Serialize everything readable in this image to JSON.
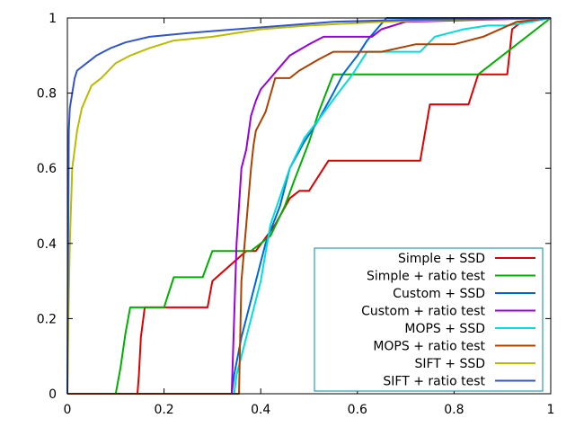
{
  "chart_data": {
    "type": "line",
    "title": "",
    "xlabel": "",
    "ylabel": "",
    "xlim": [
      0,
      1
    ],
    "ylim": [
      0,
      1
    ],
    "grid": false,
    "legend_position": "bottom-right",
    "x_ticks": [
      "0",
      "0.2",
      "0.4",
      "0.6",
      "0.8",
      "1"
    ],
    "y_ticks": [
      "0",
      "0.2",
      "0.4",
      "0.6",
      "0.8",
      "1"
    ],
    "series": [
      {
        "name": "Simple + SSD",
        "color": "#e00000",
        "points": [
          [
            0,
            0
          ],
          [
            0.145,
            0
          ],
          [
            0.148,
            0.05
          ],
          [
            0.152,
            0.15
          ],
          [
            0.16,
            0.23
          ],
          [
            0.21,
            0.23
          ],
          [
            0.29,
            0.23
          ],
          [
            0.3,
            0.3
          ],
          [
            0.37,
            0.38
          ],
          [
            0.39,
            0.38
          ],
          [
            0.43,
            0.45
          ],
          [
            0.46,
            0.52
          ],
          [
            0.48,
            0.54
          ],
          [
            0.5,
            0.54
          ],
          [
            0.54,
            0.62
          ],
          [
            0.6,
            0.62
          ],
          [
            0.73,
            0.62
          ],
          [
            0.75,
            0.77
          ],
          [
            0.83,
            0.77
          ],
          [
            0.85,
            0.85
          ],
          [
            0.91,
            0.85
          ],
          [
            0.92,
            0.97
          ],
          [
            0.94,
            0.99
          ],
          [
            1,
            1
          ]
        ]
      },
      {
        "name": "Simple + ratio test",
        "color": "#00b000",
        "points": [
          [
            0,
            0
          ],
          [
            0.1,
            0
          ],
          [
            0.11,
            0.07
          ],
          [
            0.12,
            0.16
          ],
          [
            0.13,
            0.23
          ],
          [
            0.2,
            0.23
          ],
          [
            0.22,
            0.31
          ],
          [
            0.28,
            0.31
          ],
          [
            0.3,
            0.38
          ],
          [
            0.38,
            0.38
          ],
          [
            0.42,
            0.42
          ],
          [
            0.45,
            0.5
          ],
          [
            0.47,
            0.57
          ],
          [
            0.5,
            0.67
          ],
          [
            0.52,
            0.75
          ],
          [
            0.55,
            0.85
          ],
          [
            0.6,
            0.85
          ],
          [
            0.85,
            0.85
          ],
          [
            1,
            1
          ]
        ]
      },
      {
        "name": "Custom + SSD",
        "color": "#0066dd",
        "points": [
          [
            0,
            0
          ],
          [
            0.34,
            0
          ],
          [
            0.345,
            0.05
          ],
          [
            0.36,
            0.15
          ],
          [
            0.39,
            0.3
          ],
          [
            0.41,
            0.4
          ],
          [
            0.44,
            0.5
          ],
          [
            0.46,
            0.6
          ],
          [
            0.49,
            0.67
          ],
          [
            0.52,
            0.73
          ],
          [
            0.55,
            0.8
          ],
          [
            0.57,
            0.85
          ],
          [
            0.6,
            0.9
          ],
          [
            0.62,
            0.94
          ],
          [
            0.64,
            0.97
          ],
          [
            0.66,
            1
          ],
          [
            1,
            1
          ]
        ]
      },
      {
        "name": "Custom + ratio test",
        "color": "#9900dd",
        "points": [
          [
            0,
            0
          ],
          [
            0.34,
            0
          ],
          [
            0.345,
            0.2
          ],
          [
            0.35,
            0.4
          ],
          [
            0.36,
            0.6
          ],
          [
            0.37,
            0.65
          ],
          [
            0.38,
            0.74
          ],
          [
            0.39,
            0.78
          ],
          [
            0.4,
            0.81
          ],
          [
            0.42,
            0.84
          ],
          [
            0.44,
            0.87
          ],
          [
            0.46,
            0.9
          ],
          [
            0.5,
            0.93
          ],
          [
            0.53,
            0.95
          ],
          [
            0.63,
            0.95
          ],
          [
            0.65,
            0.97
          ],
          [
            0.7,
            0.99
          ],
          [
            1,
            1
          ]
        ]
      },
      {
        "name": "MOPS + SSD",
        "color": "#00dddd",
        "points": [
          [
            0,
            0
          ],
          [
            0.345,
            0
          ],
          [
            0.35,
            0.05
          ],
          [
            0.37,
            0.15
          ],
          [
            0.4,
            0.3
          ],
          [
            0.42,
            0.45
          ],
          [
            0.46,
            0.6
          ],
          [
            0.49,
            0.68
          ],
          [
            0.52,
            0.73
          ],
          [
            0.56,
            0.8
          ],
          [
            0.59,
            0.85
          ],
          [
            0.62,
            0.91
          ],
          [
            0.73,
            0.91
          ],
          [
            0.76,
            0.95
          ],
          [
            0.82,
            0.97
          ],
          [
            0.87,
            0.98
          ],
          [
            0.91,
            0.98
          ],
          [
            0.96,
            0.99
          ],
          [
            1,
            1
          ]
        ]
      },
      {
        "name": "MOPS + ratio test",
        "color": "#b04000",
        "points": [
          [
            0,
            0
          ],
          [
            0.355,
            0
          ],
          [
            0.36,
            0.3
          ],
          [
            0.37,
            0.45
          ],
          [
            0.38,
            0.6
          ],
          [
            0.385,
            0.66
          ],
          [
            0.39,
            0.7
          ],
          [
            0.41,
            0.75
          ],
          [
            0.43,
            0.84
          ],
          [
            0.46,
            0.84
          ],
          [
            0.48,
            0.86
          ],
          [
            0.52,
            0.89
          ],
          [
            0.55,
            0.91
          ],
          [
            0.65,
            0.91
          ],
          [
            0.72,
            0.93
          ],
          [
            0.8,
            0.93
          ],
          [
            0.86,
            0.95
          ],
          [
            0.93,
            0.99
          ],
          [
            1,
            1
          ]
        ]
      },
      {
        "name": "SIFT + SSD",
        "color": "#bbbb00",
        "points": [
          [
            0,
            0
          ],
          [
            0.002,
            0.2
          ],
          [
            0.005,
            0.4
          ],
          [
            0.01,
            0.6
          ],
          [
            0.02,
            0.7
          ],
          [
            0.03,
            0.76
          ],
          [
            0.05,
            0.82
          ],
          [
            0.07,
            0.84
          ],
          [
            0.1,
            0.88
          ],
          [
            0.13,
            0.9
          ],
          [
            0.17,
            0.92
          ],
          [
            0.22,
            0.94
          ],
          [
            0.3,
            0.95
          ],
          [
            0.4,
            0.97
          ],
          [
            0.5,
            0.98
          ],
          [
            0.65,
            0.99
          ],
          [
            0.8,
            0.995
          ],
          [
            1,
            1
          ]
        ]
      },
      {
        "name": "SIFT + ratio test",
        "color": "#3355cc",
        "points": [
          [
            0,
            0
          ],
          [
            0.001,
            0.3
          ],
          [
            0.002,
            0.5
          ],
          [
            0.003,
            0.7
          ],
          [
            0.005,
            0.76
          ],
          [
            0.01,
            0.8
          ],
          [
            0.015,
            0.84
          ],
          [
            0.02,
            0.86
          ],
          [
            0.04,
            0.88
          ],
          [
            0.06,
            0.9
          ],
          [
            0.09,
            0.92
          ],
          [
            0.12,
            0.935
          ],
          [
            0.17,
            0.95
          ],
          [
            0.25,
            0.96
          ],
          [
            0.35,
            0.97
          ],
          [
            0.45,
            0.98
          ],
          [
            0.55,
            0.99
          ],
          [
            0.7,
            0.995
          ],
          [
            1,
            1
          ]
        ]
      }
    ]
  }
}
